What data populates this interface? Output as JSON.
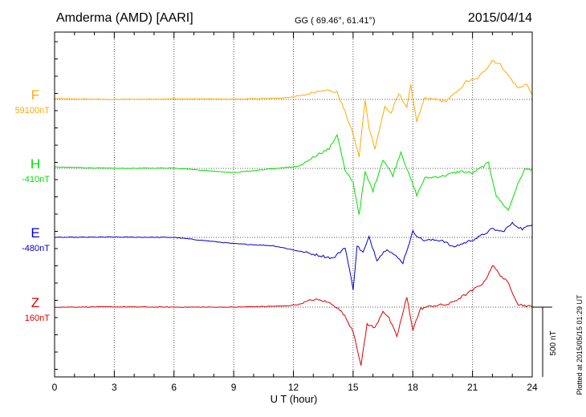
{
  "header": {
    "station": "Amderma (AMD)  [AARI]",
    "coords": "GG ( 69.46°,  61.41°)",
    "date": "2015/04/14"
  },
  "plotted_note": "Plotted at 2015/05/15 01:29 UT",
  "chart_data": {
    "type": "line",
    "xlabel": "U T (hour)",
    "xlim": [
      0,
      24
    ],
    "xticks": [
      0,
      3,
      6,
      9,
      12,
      15,
      18,
      21,
      24
    ],
    "grid": true,
    "scale_bar": {
      "value": 500,
      "label": "500 nT"
    },
    "series": [
      {
        "name": "F",
        "baseline": "59100nT",
        "color": "#FFAA00",
        "points": [
          [
            0,
            5
          ],
          [
            3,
            0
          ],
          [
            6,
            4
          ],
          [
            9,
            2
          ],
          [
            11.5,
            10
          ],
          [
            12.5,
            30
          ],
          [
            13.5,
            70
          ],
          [
            14.2,
            50
          ],
          [
            14.6,
            -90
          ],
          [
            15,
            -250
          ],
          [
            15.3,
            -410
          ],
          [
            15.6,
            -10
          ],
          [
            15.8,
            -200
          ],
          [
            16.1,
            -350
          ],
          [
            16.6,
            -50
          ],
          [
            16.9,
            -100
          ],
          [
            17.3,
            40
          ],
          [
            17.7,
            -55
          ],
          [
            17.9,
            100
          ],
          [
            18.2,
            -155
          ],
          [
            18.6,
            5
          ],
          [
            19.2,
            0
          ],
          [
            19.6,
            -15
          ],
          [
            20.2,
            50
          ],
          [
            20.7,
            130
          ],
          [
            21.2,
            145
          ],
          [
            21.6,
            205
          ],
          [
            22,
            280
          ],
          [
            22.4,
            250
          ],
          [
            22.8,
            170
          ],
          [
            23.3,
            80
          ],
          [
            23.7,
            110
          ],
          [
            24,
            40
          ]
        ]
      },
      {
        "name": "H",
        "baseline": "-410nT",
        "color": "#00E000",
        "points": [
          [
            0,
            10
          ],
          [
            3,
            0
          ],
          [
            6,
            3
          ],
          [
            9,
            -30
          ],
          [
            11.5,
            5
          ],
          [
            12.3,
            15
          ],
          [
            13.2,
            100
          ],
          [
            13.8,
            140
          ],
          [
            14.2,
            245
          ],
          [
            14.6,
            -20
          ],
          [
            15,
            -100
          ],
          [
            15.3,
            -330
          ],
          [
            15.6,
            -30
          ],
          [
            16,
            -160
          ],
          [
            16.5,
            65
          ],
          [
            17,
            -50
          ],
          [
            17.4,
            120
          ],
          [
            17.8,
            -40
          ],
          [
            18.2,
            -190
          ],
          [
            18.6,
            -70
          ],
          [
            19.5,
            -55
          ],
          [
            20.4,
            -20
          ],
          [
            21,
            -35
          ],
          [
            21.8,
            40
          ],
          [
            22.2,
            -200
          ],
          [
            22.8,
            -300
          ],
          [
            23.2,
            -140
          ],
          [
            23.6,
            -10
          ],
          [
            24,
            -5
          ]
        ]
      },
      {
        "name": "E",
        "baseline": "-480nT",
        "color": "#0000CC",
        "points": [
          [
            0,
            0
          ],
          [
            3,
            2
          ],
          [
            6,
            0
          ],
          [
            9,
            -45
          ],
          [
            11,
            -60
          ],
          [
            12,
            -90
          ],
          [
            13,
            -120
          ],
          [
            14,
            -150
          ],
          [
            14.6,
            -70
          ],
          [
            15,
            -370
          ],
          [
            15.2,
            -60
          ],
          [
            15.5,
            -110
          ],
          [
            15.8,
            0
          ],
          [
            16.2,
            -160
          ],
          [
            16.7,
            -80
          ],
          [
            17.5,
            -180
          ],
          [
            18,
            40
          ],
          [
            18.5,
            -20
          ],
          [
            19.5,
            -20
          ],
          [
            20,
            -70
          ],
          [
            20.5,
            -45
          ],
          [
            21.3,
            0
          ],
          [
            22,
            60
          ],
          [
            22.5,
            40
          ],
          [
            23,
            100
          ],
          [
            23.5,
            60
          ],
          [
            24,
            90
          ]
        ]
      },
      {
        "name": "Z",
        "baseline": "160nT",
        "color": "#DD0000",
        "points": [
          [
            0,
            0
          ],
          [
            3,
            2
          ],
          [
            6,
            0
          ],
          [
            9,
            0
          ],
          [
            11.5,
            8
          ],
          [
            12.3,
            20
          ],
          [
            13,
            55
          ],
          [
            13.5,
            45
          ],
          [
            14,
            20
          ],
          [
            14.5,
            -45
          ],
          [
            15,
            -170
          ],
          [
            15.2,
            -290
          ],
          [
            15.4,
            -420
          ],
          [
            15.7,
            -120
          ],
          [
            16.1,
            -150
          ],
          [
            16.5,
            -25
          ],
          [
            16.8,
            -80
          ],
          [
            17.2,
            -210
          ],
          [
            17.7,
            70
          ],
          [
            18,
            -160
          ],
          [
            18.4,
            -10
          ],
          [
            19,
            10
          ],
          [
            19.8,
            20
          ],
          [
            20.3,
            60
          ],
          [
            21,
            120
          ],
          [
            21.6,
            180
          ],
          [
            22,
            300
          ],
          [
            22.4,
            230
          ],
          [
            22.8,
            170
          ],
          [
            23.3,
            20
          ],
          [
            23.7,
            10
          ],
          [
            24,
            0
          ]
        ]
      }
    ]
  }
}
